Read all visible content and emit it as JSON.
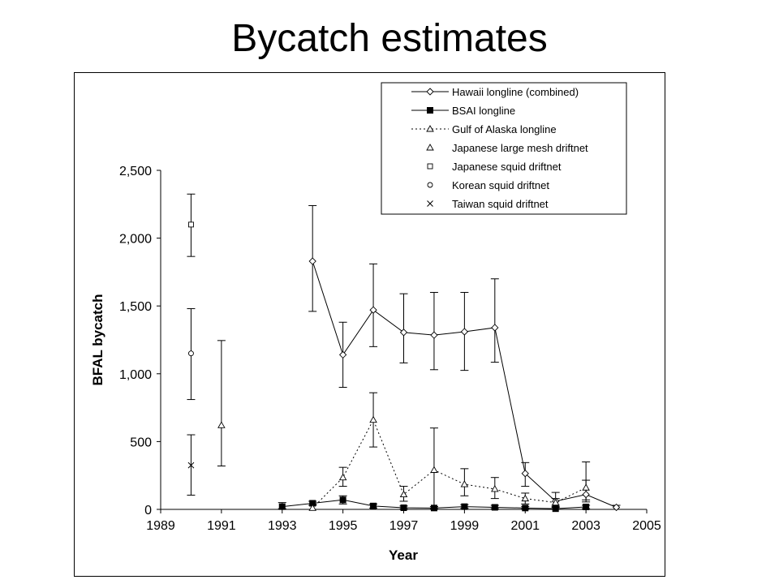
{
  "slide": {
    "title": "Bycatch estimates"
  },
  "chart_data": {
    "type": "scatter",
    "xlabel": "Year",
    "ylabel": "BFAL bycatch",
    "xlim": [
      1989,
      2005
    ],
    "ylim": [
      0,
      2500
    ],
    "x_ticks": [
      1989,
      1991,
      1993,
      1995,
      1997,
      1999,
      2001,
      2003,
      2005
    ],
    "y_ticks": [
      0,
      500,
      1000,
      1500,
      2000,
      2500
    ],
    "y_tick_labels": [
      "0",
      "500",
      "1,000",
      "1,500",
      "2,000",
      "2,500"
    ],
    "grid": false,
    "legend_position": "top-right",
    "series": [
      {
        "name": "Hawaii longline (combined)",
        "marker": "diamond",
        "line": "solid",
        "x": [
          1994,
          1995,
          1996,
          1997,
          1998,
          1999,
          2000,
          2001,
          2002,
          2003,
          2004
        ],
        "y": [
          1830,
          1140,
          1470,
          1305,
          1285,
          1310,
          1340,
          265,
          60,
          110,
          15
        ],
        "err_low": [
          1460,
          900,
          1200,
          1080,
          1030,
          1025,
          1085,
          170,
          30,
          55,
          0
        ],
        "err_high": [
          2240,
          1380,
          1810,
          1590,
          1600,
          1600,
          1700,
          345,
          125,
          215,
          30
        ]
      },
      {
        "name": "BSAI longline",
        "marker": "square-filled",
        "line": "solid",
        "x": [
          1993,
          1994,
          1995,
          1996,
          1997,
          1998,
          1999,
          2000,
          2001,
          2002,
          2003
        ],
        "y": [
          20,
          45,
          70,
          25,
          12,
          10,
          20,
          15,
          10,
          5,
          18
        ],
        "err_low": [
          5,
          30,
          40,
          10,
          3,
          3,
          8,
          5,
          3,
          0,
          5
        ],
        "err_high": [
          50,
          60,
          100,
          40,
          25,
          20,
          35,
          30,
          20,
          15,
          30
        ]
      },
      {
        "name": "Gulf of Alaska longline",
        "marker": "triangle",
        "line": "dotted",
        "x": [
          1994,
          1995,
          1996,
          1997,
          1998,
          1999,
          2000,
          2001,
          2002,
          2003
        ],
        "y": [
          10,
          235,
          660,
          110,
          290,
          185,
          150,
          80,
          50,
          160
        ],
        "err_low": [
          0,
          170,
          460,
          60,
          20,
          100,
          80,
          40,
          20,
          70
        ],
        "err_high": [
          30,
          310,
          860,
          170,
          600,
          300,
          235,
          120,
          80,
          350
        ]
      },
      {
        "name": "Japanese large mesh driftnet",
        "marker": "triangle",
        "line": "none",
        "x": [
          1991
        ],
        "y": [
          620
        ],
        "err_low": [
          320
        ],
        "err_high": [
          1245
        ]
      },
      {
        "name": "Japanese squid driftnet",
        "marker": "square",
        "line": "none",
        "x": [
          1990
        ],
        "y": [
          2100
        ],
        "err_low": [
          1865
        ],
        "err_high": [
          2325
        ]
      },
      {
        "name": "Korean squid driftnet",
        "marker": "circle",
        "line": "none",
        "x": [
          1990
        ],
        "y": [
          1150
        ],
        "err_low": [
          810
        ],
        "err_high": [
          1480
        ]
      },
      {
        "name": "Taiwan squid driftnet",
        "marker": "x",
        "line": "none",
        "x": [
          1990
        ],
        "y": [
          325
        ],
        "err_low": [
          105
        ],
        "err_high": [
          550
        ]
      }
    ]
  }
}
